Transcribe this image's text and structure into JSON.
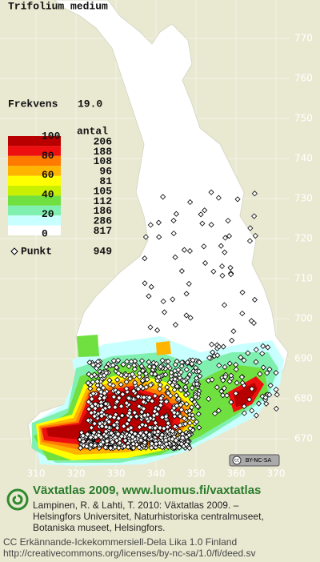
{
  "title": "Trifolium medium",
  "frequency": {
    "label": "Frekvens",
    "value": "19.0"
  },
  "legend": {
    "count_header": "antal",
    "scale_labels": [
      100,
      80,
      60,
      40,
      20,
      0
    ],
    "counts": [
      206,
      188,
      108,
      96,
      81,
      105,
      112,
      186,
      286,
      817
    ],
    "colors": [
      "#b80000",
      "#ee1010",
      "#ff7a00",
      "#ffb400",
      "#ffff00",
      "#c8f000",
      "#70e040",
      "#80f0b0",
      "#c8ffff",
      "#ffffff"
    ],
    "point_label": "Punkt",
    "point_count": 949
  },
  "grid": {
    "north": [
      770,
      760,
      750,
      740,
      730,
      720,
      710,
      700,
      690,
      680,
      670
    ],
    "east": [
      310,
      320,
      330,
      340,
      350,
      360,
      370
    ]
  },
  "badge": "BY-NC-SA",
  "footer": {
    "heading": "Växtatlas 2009, www.luomus.fi/vaxtatlas",
    "citation": [
      "Lampinen, R. & Lahti, T. 2010: Växtatlas 2009. –",
      "Helsingfors Universitet, Naturhistoriska centralmuseet,",
      "Botaniska museet, Helsingfors."
    ],
    "license": [
      "CC Erkännande-Ickekommersiell-Dela Lika 1.0 Finland",
      "http://creativecommons.org/licenses/by-nc-sa/1.0/fi/deed.sv"
    ]
  }
}
